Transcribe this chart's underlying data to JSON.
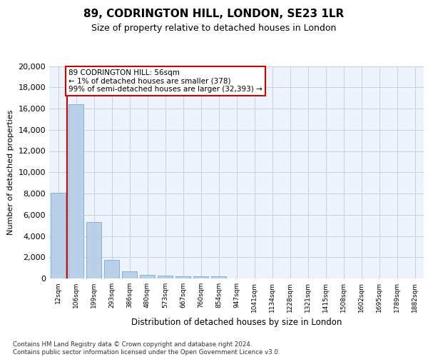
{
  "title": "89, CODRINGTON HILL, LONDON, SE23 1LR",
  "subtitle": "Size of property relative to detached houses in London",
  "xlabel": "Distribution of detached houses by size in London",
  "ylabel": "Number of detached properties",
  "bar_color": "#b8d0e8",
  "bar_edge_color": "#7aabcf",
  "categories": [
    "12sqm",
    "106sqm",
    "199sqm",
    "293sqm",
    "386sqm",
    "480sqm",
    "573sqm",
    "667sqm",
    "760sqm",
    "854sqm",
    "947sqm",
    "1041sqm",
    "1134sqm",
    "1228sqm",
    "1321sqm",
    "1415sqm",
    "1508sqm",
    "1602sqm",
    "1695sqm",
    "1789sqm",
    "1882sqm"
  ],
  "values": [
    8100,
    16400,
    5300,
    1750,
    700,
    350,
    270,
    220,
    200,
    170,
    0,
    0,
    0,
    0,
    0,
    0,
    0,
    0,
    0,
    0,
    0
  ],
  "ylim": [
    0,
    20000
  ],
  "yticks": [
    0,
    2000,
    4000,
    6000,
    8000,
    10000,
    12000,
    14000,
    16000,
    18000,
    20000
  ],
  "annotation_text": "89 CODRINGTON HILL: 56sqm\n← 1% of detached houses are smaller (378)\n99% of semi-detached houses are larger (32,393) →",
  "vline_color": "#cc0000",
  "box_color": "#cc0000",
  "footnote": "Contains HM Land Registry data © Crown copyright and database right 2024.\nContains public sector information licensed under the Open Government Licence v3.0.",
  "background_color": "#eef2fb",
  "grid_color": "#c8cedf"
}
